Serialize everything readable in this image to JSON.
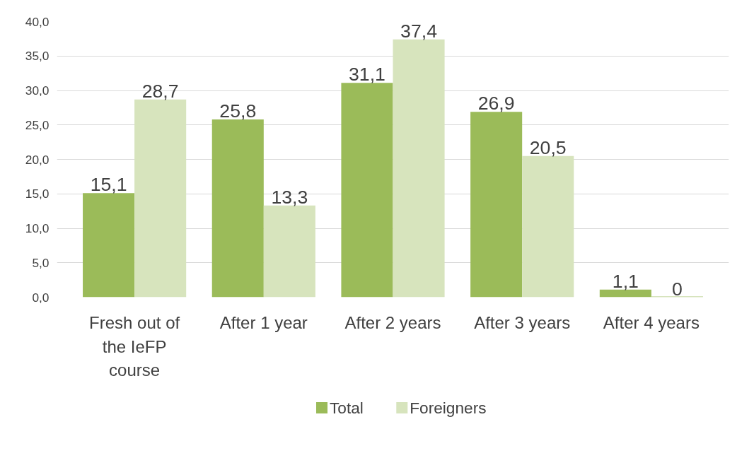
{
  "chart_data": {
    "type": "bar",
    "categories": [
      "Fresh out of the IeFP course",
      "After 1 year",
      "After 2 years",
      "After 3 years",
      "After 4 years"
    ],
    "series": [
      {
        "name": "Total",
        "color": "#9bbb59",
        "values": [
          15.1,
          25.8,
          31.1,
          26.9,
          1.1
        ],
        "value_labels": [
          "15,1",
          "25,8",
          "31,1",
          "26,9",
          "1,1"
        ]
      },
      {
        "name": "Foreigners",
        "color": "#d7e4bd",
        "values": [
          28.7,
          13.3,
          37.4,
          20.5,
          0
        ],
        "value_labels": [
          "28,7",
          "13,3",
          "37,4",
          "20,5",
          "0"
        ]
      }
    ],
    "ylim": [
      0,
      40
    ],
    "yticks": [
      {
        "value": 0,
        "label": "0,0"
      },
      {
        "value": 5,
        "label": "5,0"
      },
      {
        "value": 10,
        "label": "10,0"
      },
      {
        "value": 15,
        "label": "15,0"
      },
      {
        "value": 20,
        "label": "20,0"
      },
      {
        "value": 25,
        "label": "25,0"
      },
      {
        "value": 30,
        "label": "30,0"
      },
      {
        "value": 35,
        "label": "35,0"
      },
      {
        "value": 40,
        "label": "40,0"
      }
    ],
    "grid": "y",
    "legend": "bottom"
  }
}
